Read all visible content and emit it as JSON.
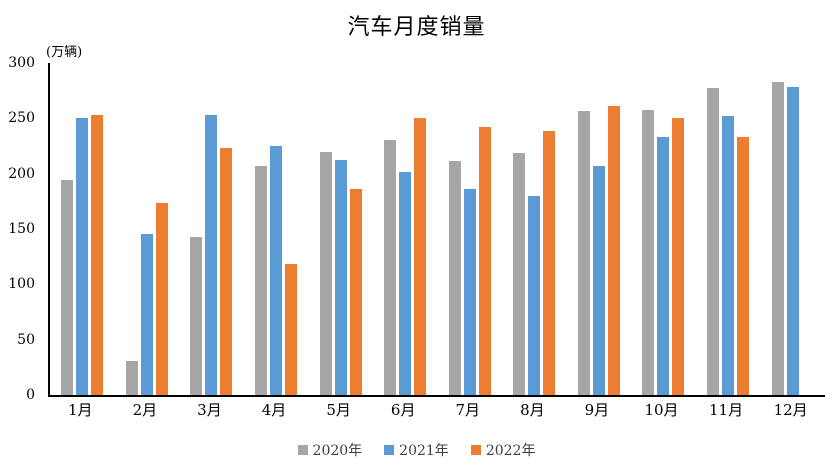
{
  "chart_data": {
    "type": "bar",
    "title": "汽车月度销量",
    "unit": "(万辆)",
    "categories": [
      "1月",
      "2月",
      "3月",
      "4月",
      "5月",
      "6月",
      "7月",
      "8月",
      "9月",
      "10月",
      "11月",
      "12月"
    ],
    "series": [
      {
        "name": "2020年",
        "color": "#A6A6A6",
        "values": [
          194.1,
          31.0,
          143.0,
          207.0,
          219.4,
          230.0,
          211.2,
          218.6,
          256.5,
          257.3,
          277.0,
          283.1
        ]
      },
      {
        "name": "2021年",
        "color": "#5B9BD5",
        "values": [
          250.3,
          145.5,
          252.6,
          225.2,
          212.8,
          201.5,
          186.4,
          179.9,
          206.7,
          233.3,
          252.2,
          278.6
        ]
      },
      {
        "name": "2022年",
        "color": "#ED7D31",
        "values": [
          253.1,
          173.7,
          223.4,
          118.1,
          186.2,
          250.2,
          242.0,
          238.3,
          261.0,
          250.5,
          232.8,
          null
        ]
      }
    ],
    "ylim": [
      0,
      300
    ],
    "yticks": [
      0,
      50,
      100,
      150,
      200,
      250,
      300
    ],
    "xlabel": "",
    "ylabel": "(万辆)",
    "grid": false,
    "legend_position": "bottom",
    "axis_color": "#000000",
    "background_color": "#ffffff"
  }
}
